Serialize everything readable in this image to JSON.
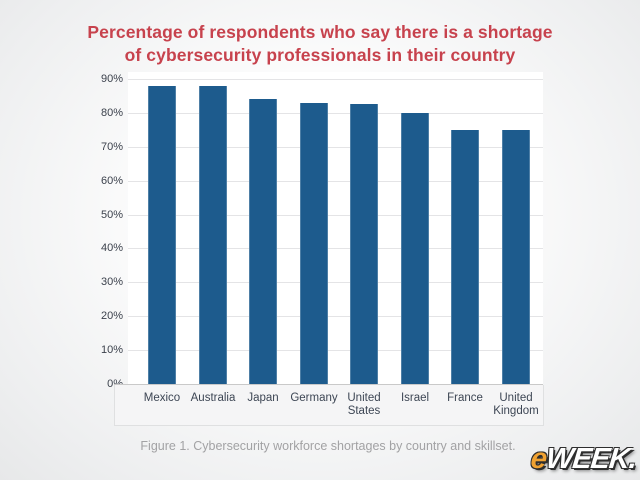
{
  "page": {
    "title_line1": "Percentage of respondents who say there is a shortage",
    "title_line2": "of cybersecurity professionals in their country",
    "caption": "Figure 1. Cybersecurity workforce shortages by country and skillset."
  },
  "chart_data": {
    "type": "bar",
    "title": "Percentage of respondents who say there is a shortage of cybersecurity professionals in their country",
    "categories": [
      "Mexico",
      "Australia",
      "Japan",
      "Germany",
      "United States",
      "Israel",
      "France",
      "United Kingdom"
    ],
    "values": [
      88,
      88,
      84,
      83,
      82.5,
      80,
      75,
      75
    ],
    "xlabel": "",
    "ylabel": "",
    "ylim": [
      0,
      90
    ],
    "yticks": [
      0,
      10,
      20,
      30,
      40,
      50,
      60,
      70,
      80,
      90
    ],
    "ytick_suffix": "%",
    "grid": true,
    "legend": "none",
    "bar_color": "#1d5b8d"
  },
  "branding": {
    "logo_prefix": "e",
    "logo_rest": "WEEK."
  },
  "colors": {
    "title_text": "#c7424d",
    "bar": "#1d5b8d",
    "axis_text": "#3b414c",
    "category_text": "#3d4654",
    "caption_text": "#a2a2a4",
    "gridline": "#e4e4e6",
    "baseline": "#c9c9c9",
    "logo_orange": "#f0a232"
  }
}
